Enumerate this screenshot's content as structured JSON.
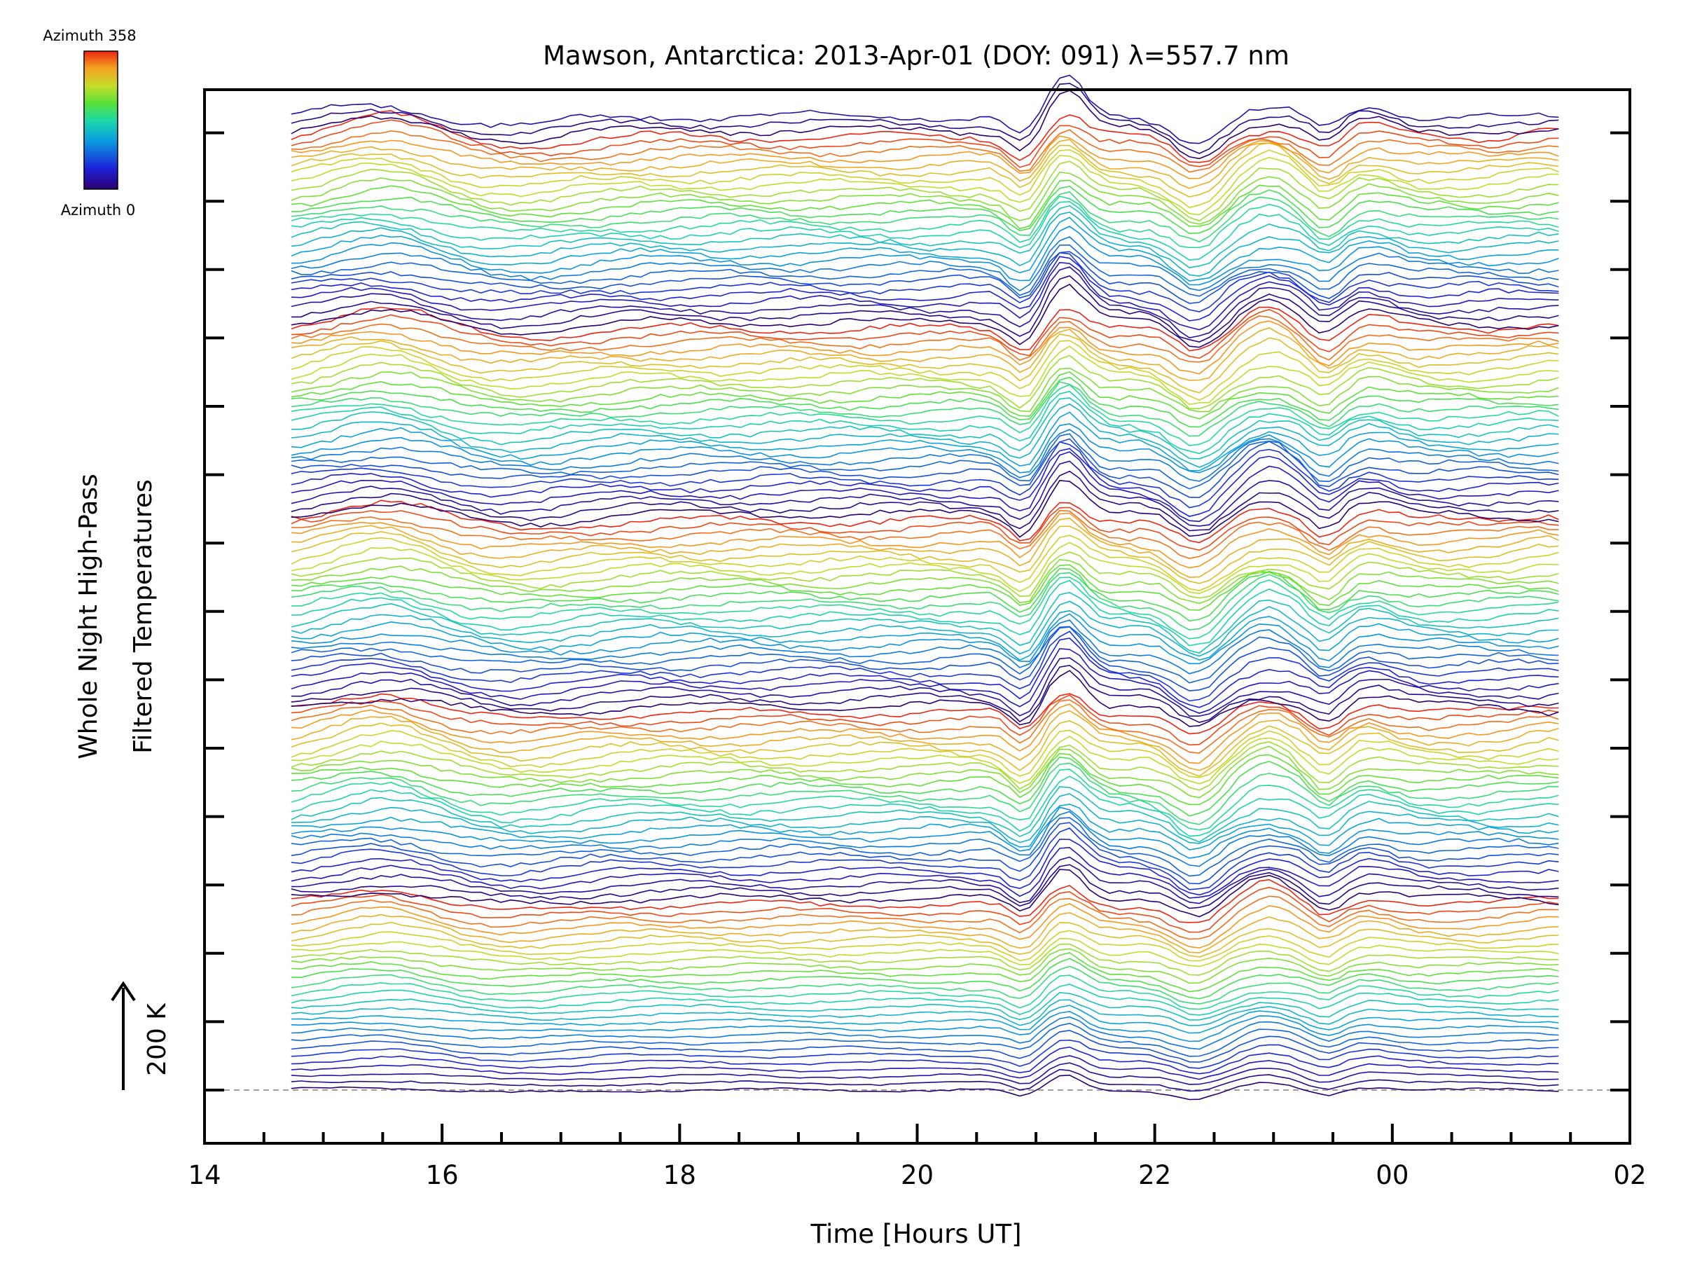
{
  "chart_data": {
    "type": "line",
    "title": "Mawson, Antarctica: 2013-Apr-01 (DOY: 091) λ=557.7 nm",
    "xlabel": "Time [Hours UT]",
    "ylabel_lines": [
      "Whole Night High-Pass",
      "Filtered Temperatures"
    ],
    "xlim_hours": [
      14,
      26
    ],
    "x_tick_labels": [
      "14",
      "16",
      "18",
      "20",
      "22",
      "00",
      "02"
    ],
    "scale_bar_label": "200 K",
    "colorbar": {
      "top_label": "Azimuth  358",
      "bottom_label": "Azimuth  0",
      "colormap": "rainbow",
      "azimuth_range": [
        0,
        358
      ]
    },
    "series_count": 143,
    "data_time_range_hours": [
      14.73,
      25.4
    ],
    "baseline_style": "dashed gray",
    "colors": {
      "axes": "#000000",
      "baseline": "#a0a0a0",
      "colormap_stops": [
        "#2a0070",
        "#1e22d8",
        "#0a9ce0",
        "#1ed8a8",
        "#58e03a",
        "#c8dc2a",
        "#f4a020",
        "#ec2412"
      ]
    }
  }
}
